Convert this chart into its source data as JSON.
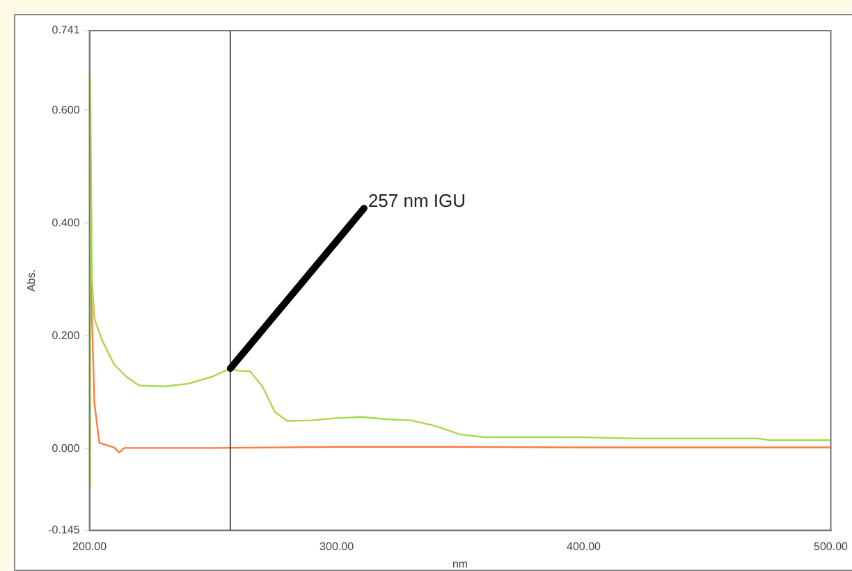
{
  "chart_data": {
    "type": "line",
    "xlabel": "nm",
    "ylabel": "Abs.",
    "xlim": [
      200,
      500
    ],
    "xticks": [
      {
        "value": 200,
        "label": "200.00"
      },
      {
        "value": 300,
        "label": "300.00"
      },
      {
        "value": 400,
        "label": "400.00"
      },
      {
        "value": 500,
        "label": "500.00"
      }
    ],
    "ylim": [
      -0.145,
      0.741
    ],
    "yticks": [
      {
        "value": -0.145,
        "label": "-0.145"
      },
      {
        "value": 0,
        "label": "0.000"
      },
      {
        "value": 0.2,
        "label": "0.200"
      },
      {
        "value": 0.4,
        "label": "0.400"
      },
      {
        "value": 0.6,
        "label": "0.600"
      },
      {
        "value": 0.741,
        "label": "0.741"
      }
    ],
    "grid": false,
    "legend": false,
    "marker": "none",
    "line_style": "solid",
    "series": [
      {
        "color": "#a8d84a",
        "x": [
          200,
          200.3,
          201,
          202,
          205,
          210,
          215,
          220,
          230,
          240,
          250,
          257,
          260,
          265,
          270,
          275,
          280,
          290,
          300,
          310,
          320,
          330,
          340,
          350,
          360,
          400,
          420,
          470,
          475,
          500
        ],
        "values": [
          -0.07,
          0.66,
          0.3,
          0.23,
          0.193,
          0.149,
          0.127,
          0.112,
          0.11,
          0.115,
          0.128,
          0.142,
          0.138,
          0.137,
          0.11,
          0.065,
          0.049,
          0.05,
          0.054,
          0.056,
          0.052,
          0.05,
          0.04,
          0.025,
          0.02,
          0.02,
          0.018,
          0.018,
          0.015,
          0.015
        ]
      },
      {
        "color": "#ff7a40",
        "x": [
          200,
          200.5,
          201,
          202,
          204,
          210,
          212,
          214,
          250,
          300,
          350,
          400,
          450,
          500
        ],
        "values": [
          0.42,
          0.3,
          0.23,
          0.08,
          0.01,
          0.002,
          -0.007,
          0.001,
          0.001,
          0.003,
          0.003,
          0.002,
          0.002,
          0.002
        ]
      }
    ],
    "ref_lines": [
      {
        "axis": "x",
        "value": 257,
        "color": "#555555"
      }
    ],
    "annotations": [
      {
        "text": "257 nm IGU",
        "x": 257,
        "y": 0.142
      }
    ]
  }
}
